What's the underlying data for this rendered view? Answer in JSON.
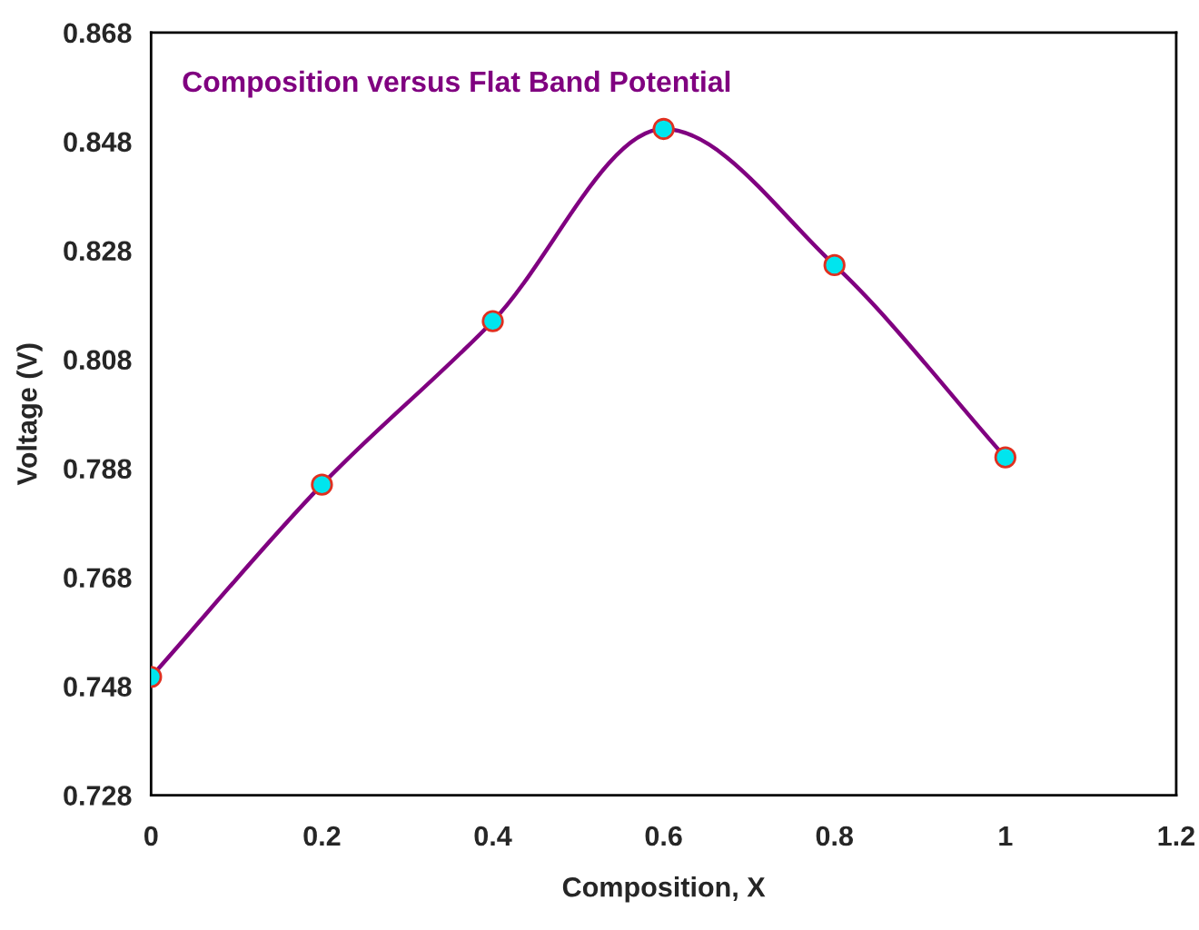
{
  "chart_data": {
    "type": "line",
    "title": "Composition versus Flat Band Potential",
    "xlabel": "Composition, X",
    "ylabel": "Voltage (V)",
    "x": [
      0,
      0.2,
      0.4,
      0.6,
      0.8,
      1.0
    ],
    "series": [
      {
        "color": "#800080",
        "values": [
          0.7497,
          0.785,
          0.815,
          0.8503,
          0.8253,
          0.79
        ]
      }
    ],
    "marker": "circle",
    "line_style": "solid",
    "grid": false,
    "legend": false,
    "xlim": [
      0,
      1.2
    ],
    "xticks": [
      0,
      0.2,
      0.4,
      0.6,
      0.8,
      1,
      1.2
    ],
    "ylim": [
      0.728,
      0.868
    ],
    "yticks": [
      0.728,
      0.748,
      0.768,
      0.788,
      0.808,
      0.828,
      0.848,
      0.868
    ]
  }
}
